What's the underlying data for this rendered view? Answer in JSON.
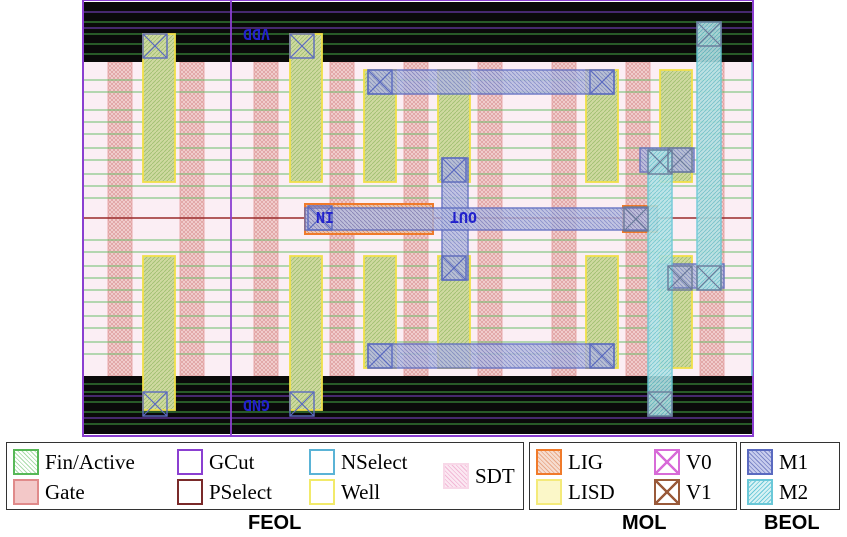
{
  "cell": {
    "pin_labels": [
      "VDD",
      "IN",
      "OUT",
      "GND"
    ]
  },
  "colors": {
    "fin": "#57b857",
    "gate": "#e8a6a6",
    "gcut": "#8b3fd1",
    "pselect": "#7a2a2a",
    "nselect": "#5ab3d6",
    "well": "#f2ea6a",
    "sdt": "#f2b8d6",
    "lig": "#f07a2a",
    "lisd": "#f4ea7a",
    "v0": "#d86bd8",
    "v1": "#9a5a3a",
    "m1": "#5a6ac0",
    "m2": "#6ac8d8"
  },
  "legend": {
    "feol": {
      "group_label": "FEOL",
      "items": [
        {
          "label": "Fin/Active",
          "icon": "fin-swatch"
        },
        {
          "label": "Gate",
          "icon": "gate-swatch"
        },
        {
          "label": "GCut",
          "icon": "gcut-swatch"
        },
        {
          "label": "PSelect",
          "icon": "pselect-swatch"
        },
        {
          "label": "NSelect",
          "icon": "nselect-swatch"
        },
        {
          "label": "Well",
          "icon": "well-swatch"
        },
        {
          "label": "SDT",
          "icon": "sdt-swatch"
        }
      ]
    },
    "mol": {
      "group_label": "MOL",
      "items": [
        {
          "label": "LIG",
          "icon": "lig-swatch"
        },
        {
          "label": "LISD",
          "icon": "lisd-swatch"
        },
        {
          "label": "V0",
          "icon": "v0-swatch"
        },
        {
          "label": "V1",
          "icon": "v1-swatch"
        }
      ]
    },
    "beol": {
      "group_label": "BEOL",
      "items": [
        {
          "label": "M1",
          "icon": "m1-swatch"
        },
        {
          "label": "M2",
          "icon": "m2-swatch"
        }
      ]
    }
  }
}
